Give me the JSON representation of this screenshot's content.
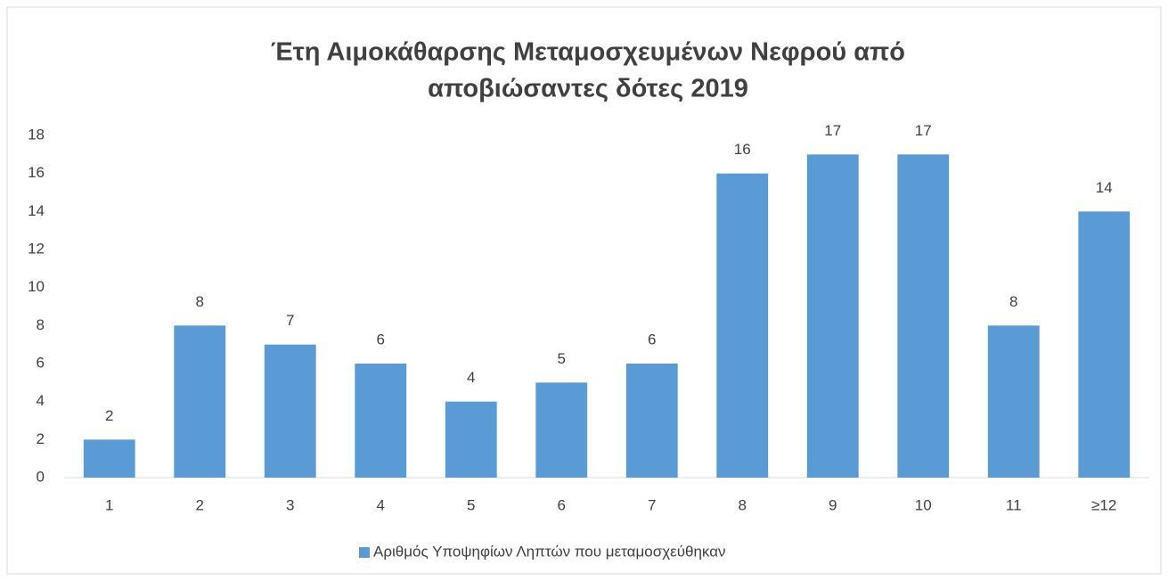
{
  "chart_data": {
    "type": "bar",
    "title": [
      "Έτη Αιμοκάθαρσης Μεταμοσχευμένων Νεφρού από",
      "αποβιώσαντες δότες 2019"
    ],
    "categories": [
      "1",
      "2",
      "3",
      "4",
      "5",
      "6",
      "7",
      "8",
      "9",
      "10",
      "11",
      "≥12"
    ],
    "series": [
      {
        "name": "Αριθμός Υποψηφίων Ληπτών που μεταμοσχεύθηκαν",
        "color": "#5b9bd5",
        "values": [
          2,
          8,
          7,
          6,
          4,
          5,
          6,
          16,
          17,
          17,
          8,
          14
        ]
      }
    ],
    "ylim": [
      0,
      18
    ],
    "yticks": [
      0,
      2,
      4,
      6,
      8,
      10,
      12,
      14,
      16,
      18
    ],
    "grid": false,
    "legend": "bottom"
  }
}
